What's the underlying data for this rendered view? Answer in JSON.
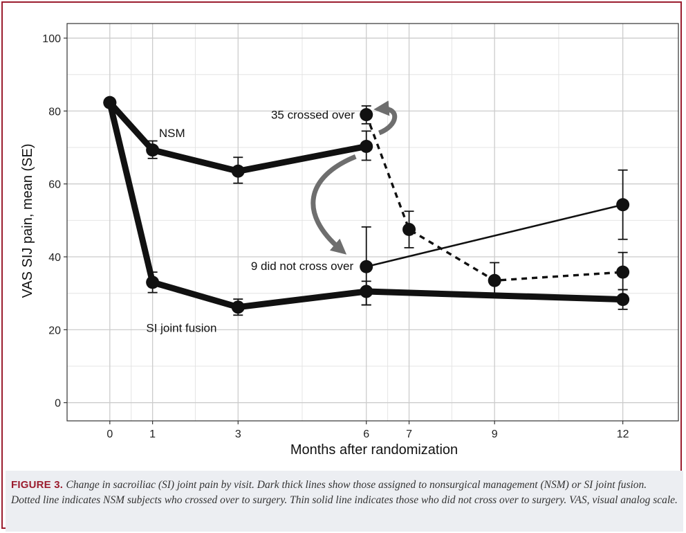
{
  "chart_data": {
    "type": "line",
    "xlabel": "Months after randomization",
    "ylabel": "VAS SIJ pain, mean (SE)",
    "xlim": [
      -1,
      13.3
    ],
    "ylim": [
      -5,
      104
    ],
    "x_ticks": [
      0,
      1,
      3,
      6,
      7,
      9,
      12
    ],
    "y_ticks": [
      0,
      20,
      40,
      60,
      80,
      100
    ],
    "grid": true,
    "series": [
      {
        "key": "nsm",
        "style": "thick",
        "x": [
          0,
          1,
          3,
          6
        ],
        "y": [
          82.3,
          69.3,
          63.5,
          70.3
        ],
        "lower": [
          null,
          67,
          60.2,
          66.5
        ],
        "upper": [
          null,
          71.8,
          67.3,
          74.5
        ]
      },
      {
        "key": "fusion",
        "style": "thick",
        "x": [
          0,
          1,
          3,
          6,
          12
        ],
        "y": [
          82.3,
          33,
          26.2,
          30.5,
          28.3
        ],
        "lower": [
          null,
          30.2,
          24,
          26.8,
          25.6
        ],
        "upper": [
          null,
          35.8,
          28.4,
          33.3,
          31
        ]
      },
      {
        "key": "crossed",
        "style": "dashed",
        "x": [
          6,
          7,
          9,
          12
        ],
        "y": [
          79,
          47.5,
          33.5,
          35.8
        ],
        "lower": [
          76.5,
          42.5,
          28.8,
          31
        ],
        "upper": [
          81.4,
          52.5,
          38.4,
          41.2
        ]
      },
      {
        "key": "not_crossed",
        "style": "thin",
        "x": [
          6,
          12
        ],
        "y": [
          37.3,
          54.3
        ],
        "lower": [
          26.8,
          44.8
        ],
        "upper": [
          48.2,
          63.8
        ]
      }
    ],
    "annotations": [
      {
        "text": "NSM",
        "x": 1.15,
        "y": 74
      },
      {
        "text": "SI joint fusion",
        "x": 0.85,
        "y": 20.5
      },
      {
        "text": "35 crossed over",
        "x": 4.75,
        "y": 79,
        "anchor": "middle"
      },
      {
        "text": "9 did not cross over",
        "x": 4.5,
        "y": 37.5,
        "anchor": "middle"
      }
    ],
    "arrow_color": "#6e6e6e"
  },
  "caption": {
    "label": "FIGURE 3.",
    "text": "Change in sacroiliac (SI) joint pain by visit. Dark thick lines show those assigned to nonsurgical management (NSM) or SI joint fusion. Dotted line indicates NSM subjects who crossed over to surgery. Thin solid line indicates those who did not cross over to surgery. VAS, visual analog scale."
  },
  "colors": {
    "frame": "#9b1c2e",
    "caption_bg": "#eceef2",
    "line": "#111111",
    "grid": "#cccccc"
  }
}
